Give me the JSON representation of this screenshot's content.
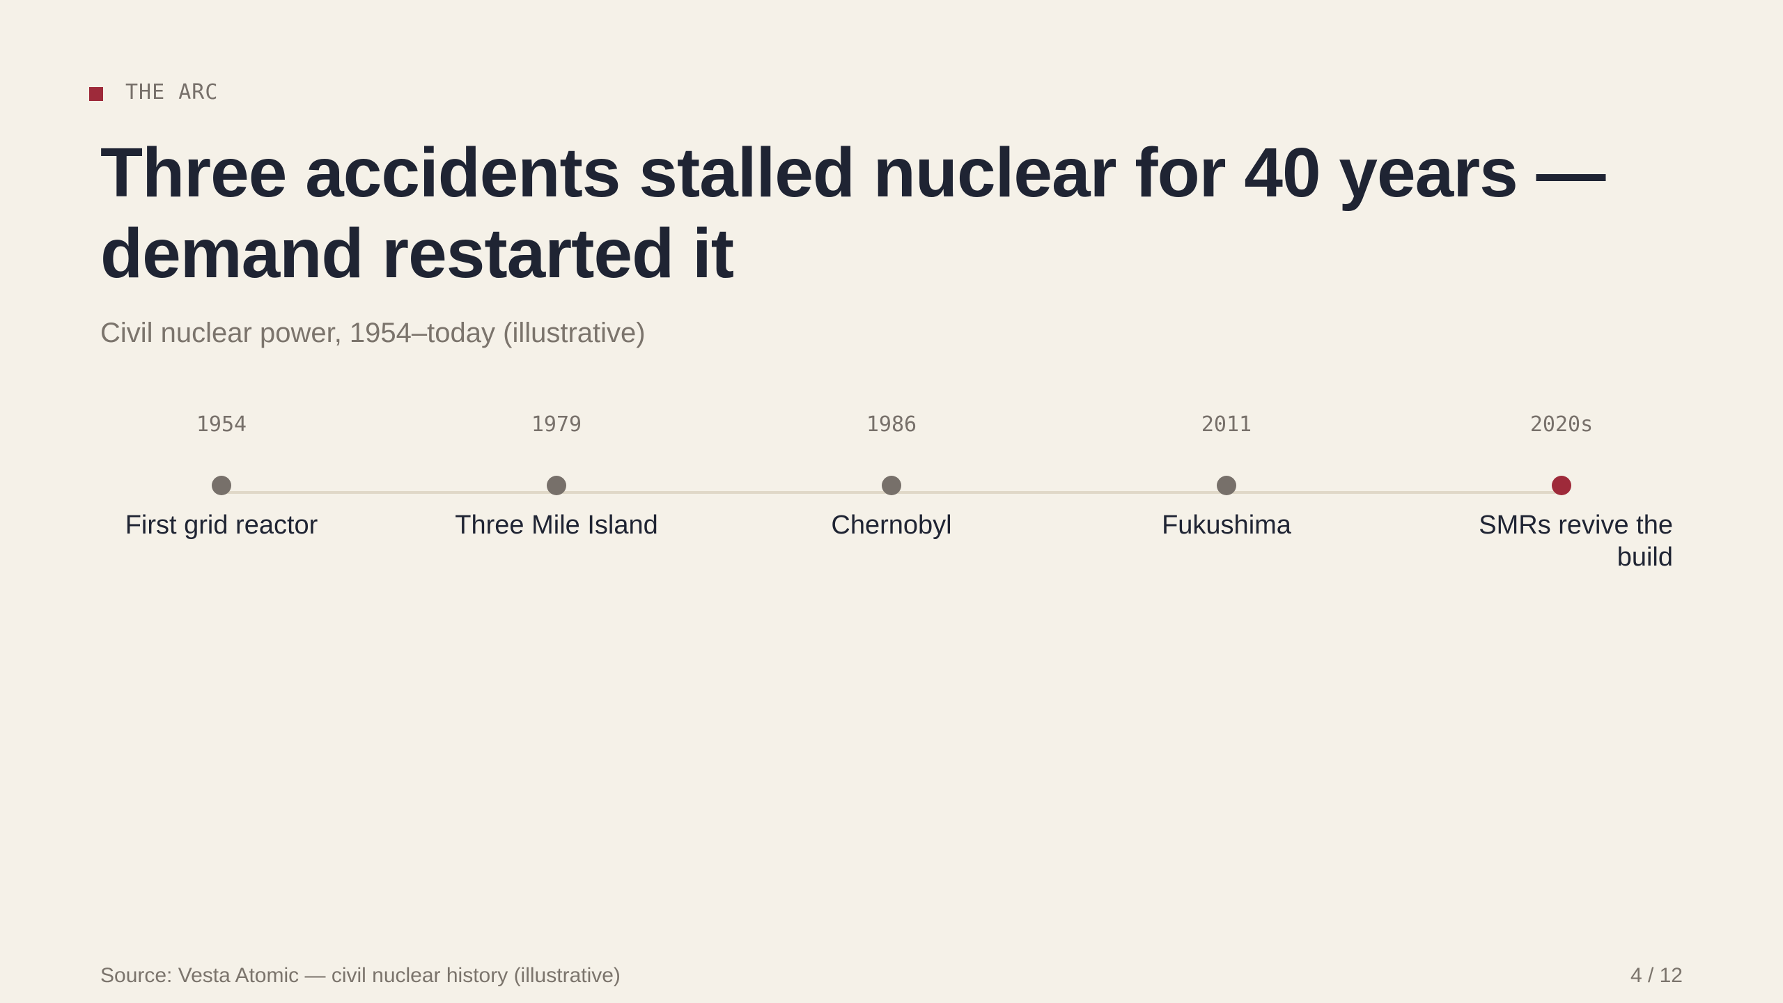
{
  "kicker": {
    "label": "THE ARC"
  },
  "headline": {
    "title": "Three accidents stalled nuclear for 40 years — demand restarted it",
    "subtitle": "Civil nuclear power, 1954–today (illustrative)"
  },
  "timeline": {
    "events": [
      {
        "year": "1954",
        "label": "First grid reactor",
        "highlight": false
      },
      {
        "year": "1979",
        "label": "Three Mile Island",
        "highlight": false
      },
      {
        "year": "1986",
        "label": "Chernobyl",
        "highlight": false
      },
      {
        "year": "2011",
        "label": "Fukushima",
        "highlight": false
      },
      {
        "year": "2020s",
        "label": "SMRs revive the build",
        "highlight": true
      }
    ]
  },
  "footer": {
    "source": "Source: Vesta Atomic — civil nuclear history (illustrative)",
    "page": "4 / 12"
  },
  "colors": {
    "background": "#f5f1e8",
    "accent": "#9e2a3a",
    "dot": "#77706a",
    "track": "#e0d8c8",
    "text": "#1f2433",
    "muted": "#7b746c"
  }
}
